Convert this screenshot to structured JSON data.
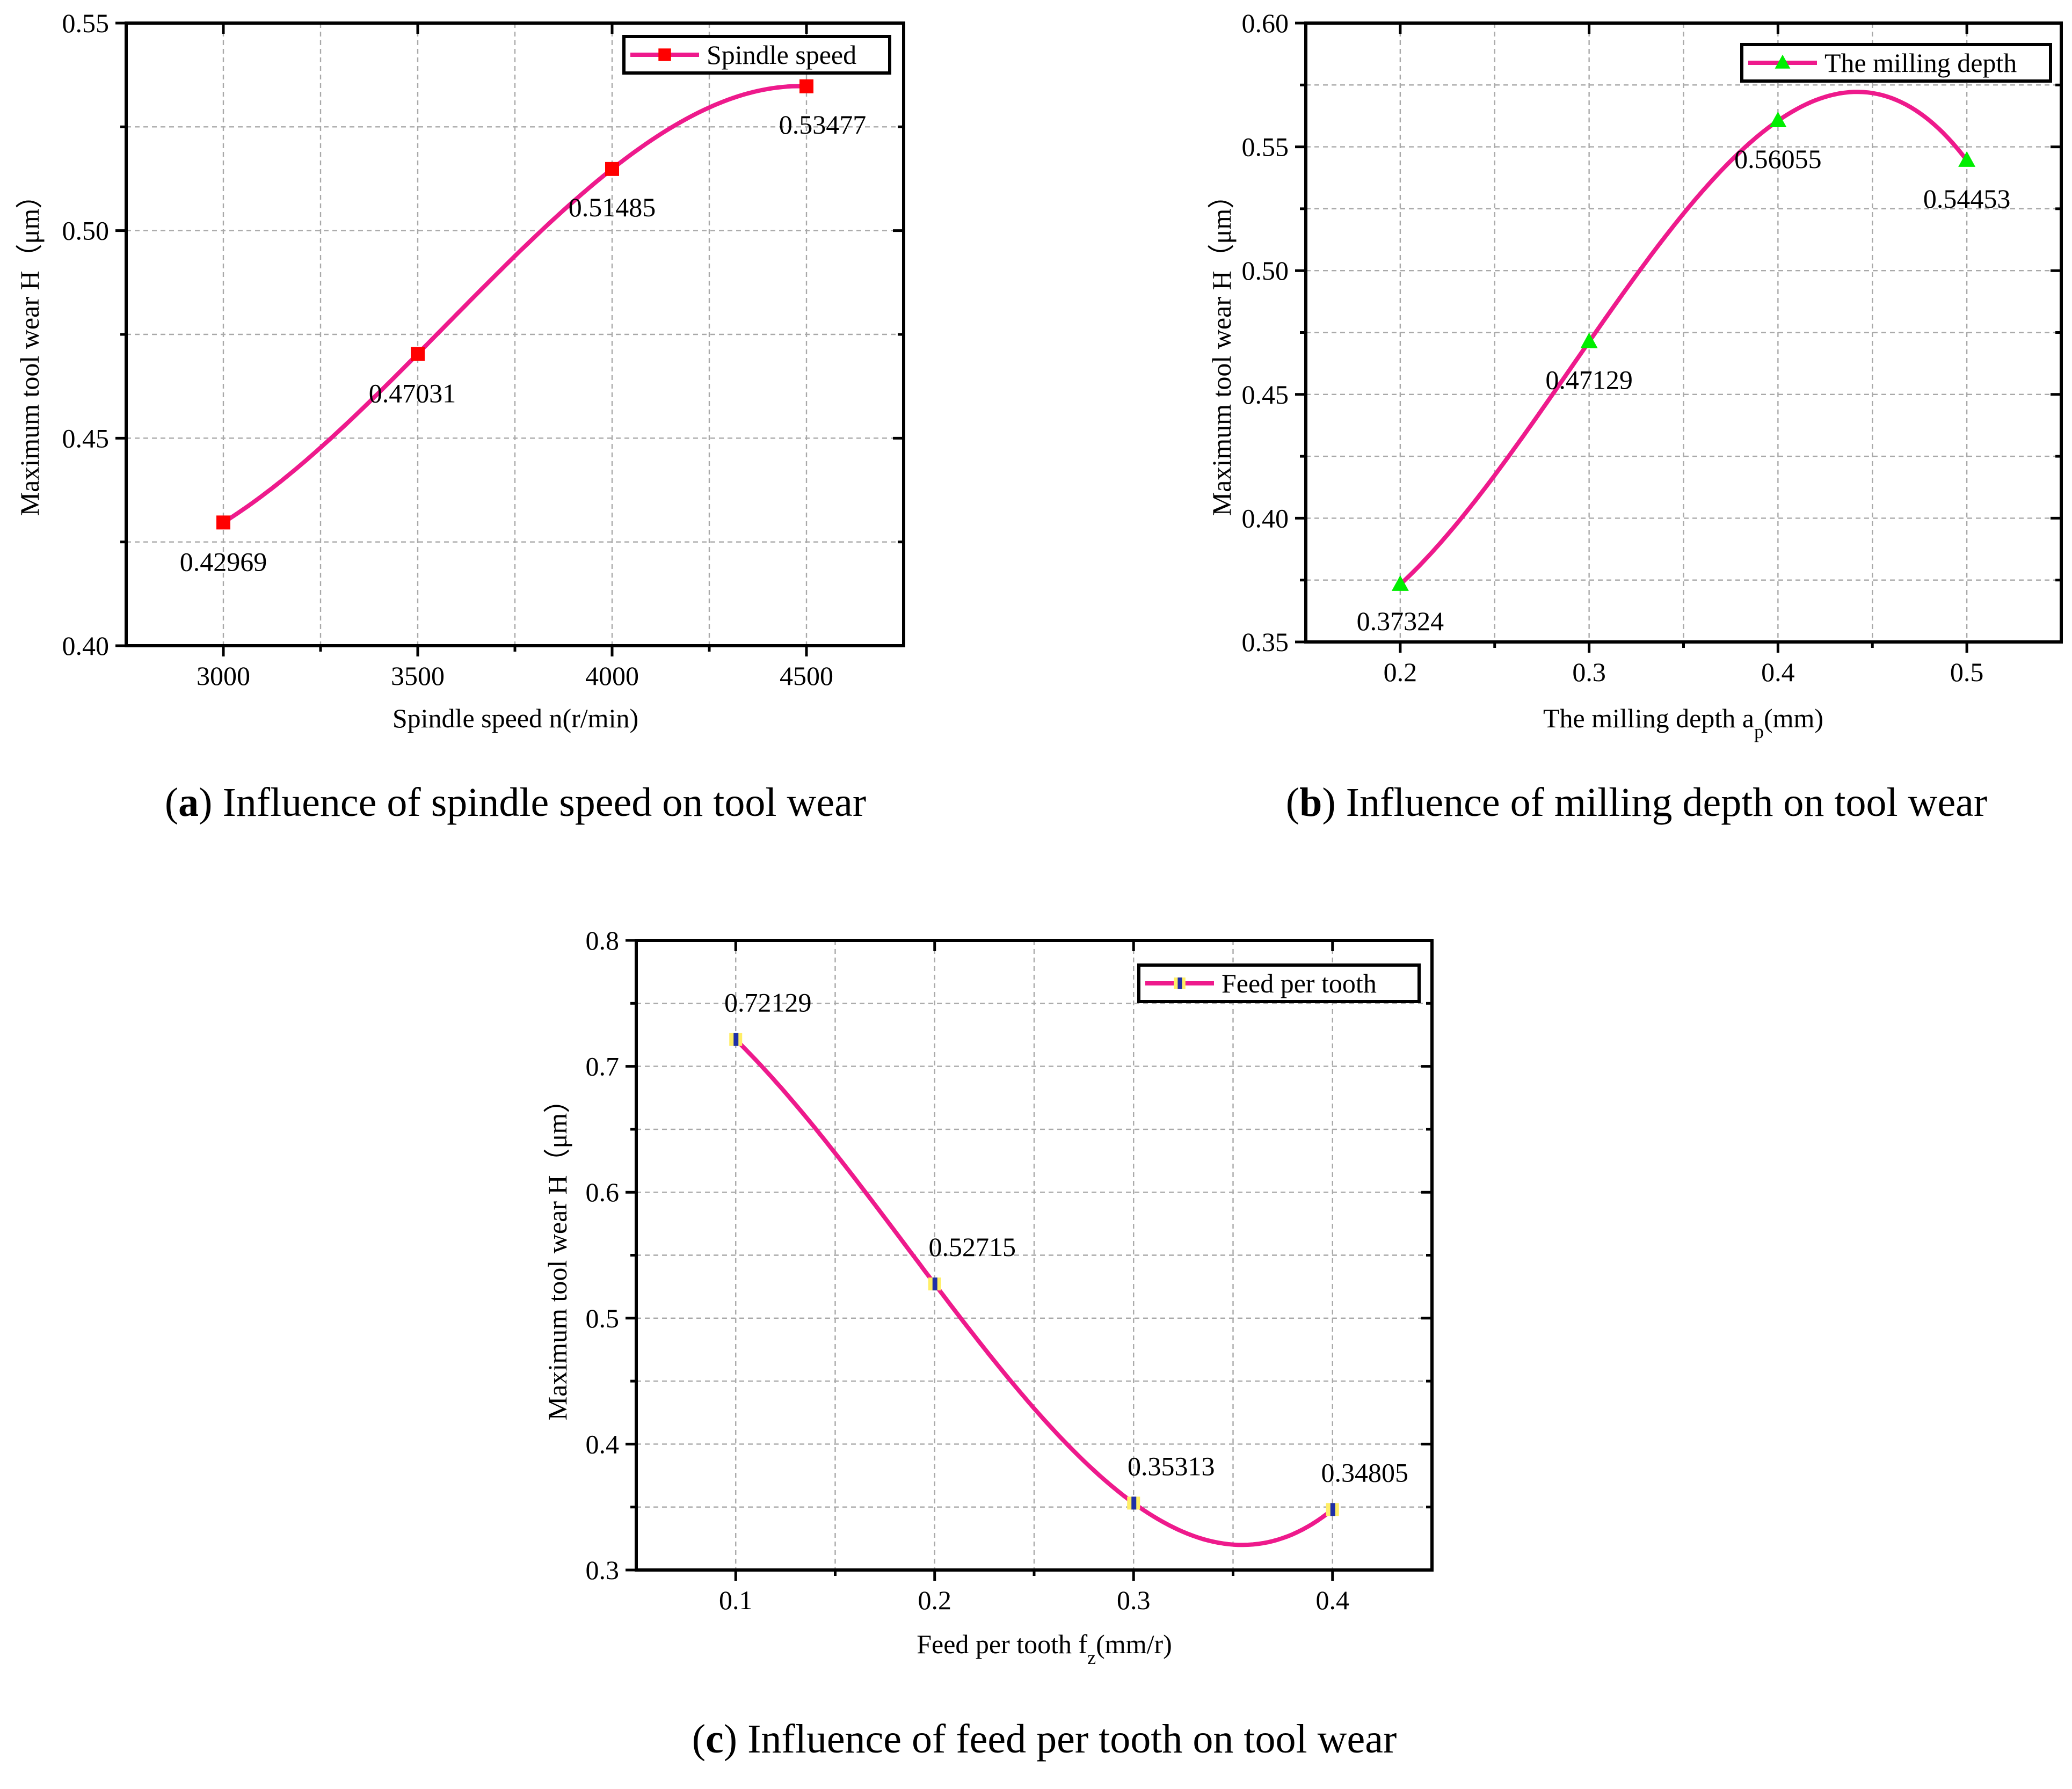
{
  "colors": {
    "curve": "#ee1a8c",
    "marker_a": "#ff0000",
    "marker_b": "#00ee00",
    "marker_c_fill": "#ffee66",
    "marker_c_core": "#1f2fa8",
    "grid": "#a9a9a9"
  },
  "chart_data": [
    {
      "type": "line",
      "ylabel": "Maximum tool wear H（μm）",
      "xlabel": {
        "main": "Spindle speed n(r/min)",
        "sub": ""
      },
      "caption": {
        "letter": "a",
        "text": "Influence of spindle speed on tool wear"
      },
      "legend": {
        "label": "Spindle speed",
        "position": "top-right"
      },
      "marker": "square",
      "x": [
        3000,
        3500,
        4000,
        4500
      ],
      "y": [
        0.42969,
        0.47031,
        0.51485,
        0.53477
      ],
      "data_labels": [
        "0.42969",
        "0.47031",
        "0.51485",
        "0.53477"
      ],
      "label_position": "below",
      "xlim": [
        2750,
        4750
      ],
      "ylim": [
        0.4,
        0.55
      ],
      "xticks": [
        3000,
        3500,
        4000,
        4500
      ],
      "xtick_labels": [
        "3000",
        "3500",
        "4000",
        "4500"
      ],
      "yticks": [
        0.4,
        0.45,
        0.5,
        0.55
      ],
      "ytick_labels": [
        "0.40",
        "0.45",
        "0.50",
        "0.55"
      ],
      "xgrid": [
        3000,
        3250,
        3500,
        3750,
        4000,
        4250,
        4500
      ],
      "ygrid": [
        0.425,
        0.45,
        0.475,
        0.5,
        0.525
      ],
      "grid": true
    },
    {
      "type": "line",
      "ylabel": "Maximum tool wear H（μm）",
      "xlabel": {
        "main": "The milling depth a",
        "sub": "p",
        "tail": "(mm)"
      },
      "caption": {
        "letter": "b",
        "text": "Influence of milling depth on tool wear"
      },
      "legend": {
        "label": "The milling depth",
        "position": "top-right"
      },
      "marker": "triangle",
      "x": [
        0.2,
        0.3,
        0.4,
        0.5
      ],
      "y": [
        0.37324,
        0.47129,
        0.56055,
        0.54453
      ],
      "data_labels": [
        "0.37324",
        "0.47129",
        "0.56055",
        "0.54453"
      ],
      "label_position": "below",
      "xlim": [
        0.15,
        0.55
      ],
      "ylim": [
        0.35,
        0.6
      ],
      "xticks": [
        0.2,
        0.3,
        0.4,
        0.5
      ],
      "xtick_labels": [
        "0.2",
        "0.3",
        "0.4",
        "0.5"
      ],
      "yticks": [
        0.35,
        0.4,
        0.45,
        0.5,
        0.55,
        0.6
      ],
      "ytick_labels": [
        "0.35",
        "0.40",
        "0.45",
        "0.50",
        "0.55",
        "0.60"
      ],
      "xgrid": [
        0.2,
        0.25,
        0.3,
        0.35,
        0.4,
        0.45,
        0.5
      ],
      "ygrid": [
        0.375,
        0.4,
        0.425,
        0.45,
        0.475,
        0.5,
        0.525,
        0.55,
        0.575
      ],
      "grid": true
    },
    {
      "type": "line",
      "ylabel": "Maximum tool wear H（μm）",
      "xlabel": {
        "main": "Feed per tooth f",
        "sub": "z",
        "tail": "(mm/r)"
      },
      "caption": {
        "letter": "c",
        "text": "Influence of feed per tooth on tool wear"
      },
      "legend": {
        "label": "Feed per tooth",
        "position": "top-right"
      },
      "marker": "bar",
      "x": [
        0.1,
        0.2,
        0.3,
        0.4
      ],
      "y": [
        0.72129,
        0.52715,
        0.35313,
        0.34805
      ],
      "data_labels": [
        "0.72129",
        "0.52715",
        "0.35313",
        "0.34805"
      ],
      "label_position": "above",
      "xlim": [
        0.05,
        0.45
      ],
      "ylim": [
        0.3,
        0.8
      ],
      "xticks": [
        0.1,
        0.2,
        0.3,
        0.4
      ],
      "xtick_labels": [
        "0.1",
        "0.2",
        "0.3",
        "0.4"
      ],
      "yticks": [
        0.3,
        0.4,
        0.5,
        0.6,
        0.7,
        0.8
      ],
      "ytick_labels": [
        "0.3",
        "0.4",
        "0.5",
        "0.6",
        "0.7",
        "0.8"
      ],
      "xgrid": [
        0.1,
        0.15,
        0.2,
        0.25,
        0.3,
        0.35,
        0.4
      ],
      "ygrid": [
        0.35,
        0.4,
        0.45,
        0.5,
        0.55,
        0.6,
        0.65,
        0.7,
        0.75
      ],
      "grid": true
    }
  ]
}
